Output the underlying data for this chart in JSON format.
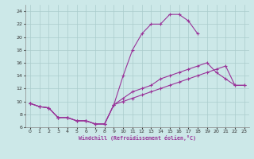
{
  "xlabel": "Windchill (Refroidissement éolien,°C)",
  "bg_color": "#cce8e8",
  "line_color": "#993399",
  "grid_color": "#aacccc",
  "xlim": [
    -0.5,
    23.5
  ],
  "ylim": [
    6,
    25
  ],
  "xticks": [
    0,
    1,
    2,
    3,
    4,
    5,
    6,
    7,
    8,
    9,
    10,
    11,
    12,
    13,
    14,
    15,
    16,
    17,
    18,
    19,
    20,
    21,
    22,
    23
  ],
  "yticks": [
    6,
    8,
    10,
    12,
    14,
    16,
    18,
    20,
    22,
    24
  ],
  "line1_x": [
    0,
    1,
    2,
    3,
    4,
    5,
    6,
    7,
    8,
    9,
    10,
    11,
    12,
    13,
    14,
    15,
    16,
    17,
    18
  ],
  "line1_y": [
    9.7,
    9.2,
    9.0,
    7.5,
    7.5,
    7.0,
    7.0,
    6.5,
    6.5,
    9.5,
    14.0,
    18.0,
    20.5,
    22.0,
    22.0,
    23.5,
    23.5,
    22.5,
    20.5
  ],
  "line2_x": [
    0,
    1,
    2,
    3,
    4,
    5,
    6,
    7,
    8,
    9,
    10,
    11,
    12,
    13,
    14,
    15,
    16,
    17,
    18,
    19,
    20,
    21,
    22,
    23
  ],
  "line2_y": [
    9.7,
    9.2,
    9.0,
    7.5,
    7.5,
    7.0,
    7.0,
    6.5,
    6.5,
    9.5,
    10.0,
    10.5,
    11.0,
    11.5,
    12.0,
    12.5,
    13.0,
    13.5,
    14.0,
    14.5,
    15.0,
    15.5,
    12.5,
    12.5
  ],
  "line3_x": [
    0,
    1,
    2,
    3,
    4,
    5,
    6,
    7,
    8,
    9,
    10,
    11,
    12,
    13,
    14,
    15,
    16,
    17,
    18,
    19,
    20,
    21,
    22,
    23
  ],
  "line3_y": [
    9.7,
    9.2,
    9.0,
    7.5,
    7.5,
    7.0,
    7.0,
    6.5,
    6.5,
    9.5,
    10.5,
    11.5,
    12.0,
    12.5,
    13.5,
    14.0,
    14.5,
    15.0,
    15.5,
    16.0,
    14.5,
    13.5,
    12.5,
    12.5
  ]
}
